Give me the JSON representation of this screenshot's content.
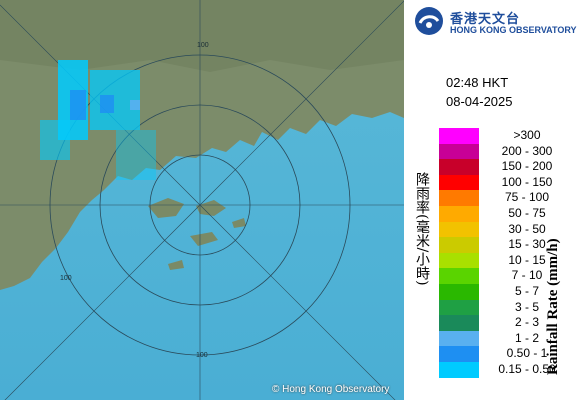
{
  "logo": {
    "name_cn": "香港天文台",
    "name_en": "HONG KONG OBSERVATORY"
  },
  "timestamp": {
    "time": "02:48 HKT",
    "date": "08-04-2025"
  },
  "legend": {
    "axis_label_cn": "降雨率(毫米/小時)",
    "axis_label_en": "Rainfall Rate (mm/h)",
    "items": [
      {
        "label": ">300",
        "color": "#ff00ff"
      },
      {
        "label": "200 - 300",
        "color": "#c80096"
      },
      {
        "label": "150 - 200",
        "color": "#c8002a"
      },
      {
        "label": "100 - 150",
        "color": "#ff0000"
      },
      {
        "label": "75 - 100",
        "color": "#ff7a00"
      },
      {
        "label": "50 - 75",
        "color": "#ffaa00"
      },
      {
        "label": "30 - 50",
        "color": "#f2c200"
      },
      {
        "label": "15 - 30",
        "color": "#cbcb00"
      },
      {
        "label": "10 - 15",
        "color": "#a8e000"
      },
      {
        "label": "7 - 10",
        "color": "#5ad400"
      },
      {
        "label": "5 - 7",
        "color": "#2ab800"
      },
      {
        "label": "3 - 5",
        "color": "#1fa044"
      },
      {
        "label": "2 - 3",
        "color": "#1a8a5a"
      },
      {
        "label": "1 - 2",
        "color": "#59b0f0"
      },
      {
        "label": "0.50 - 1",
        "color": "#1e8ff2"
      },
      {
        "label": "0.15 - 0.50",
        "color": "#00cbff"
      }
    ]
  },
  "map": {
    "range_ring_labels": [
      "100",
      "100",
      "100"
    ],
    "copyright": "© Hong Kong Observatory"
  }
}
